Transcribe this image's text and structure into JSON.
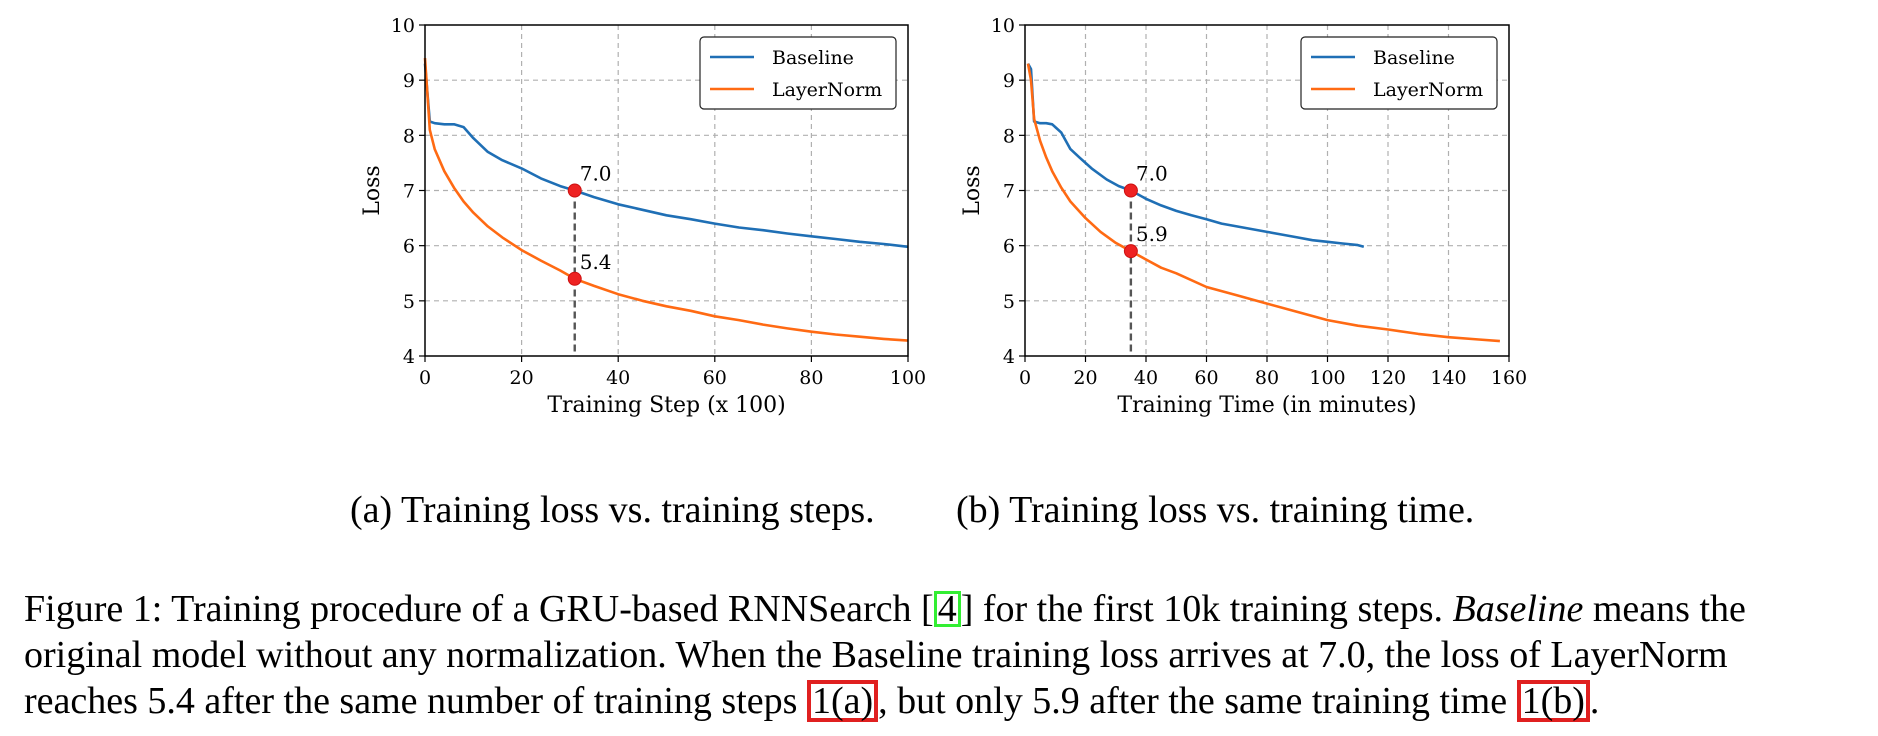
{
  "charts": [
    {
      "id": "a",
      "xlabel": "Training Step (x 100)",
      "ylabel": "Loss",
      "xlim": [
        0,
        100
      ],
      "ylim": [
        4,
        10
      ],
      "xticks": [
        "0",
        "20",
        "40",
        "60",
        "80",
        "100"
      ],
      "yticks": [
        "4",
        "5",
        "6",
        "7",
        "8",
        "9",
        "10"
      ],
      "legend": [
        "Baseline",
        "LayerNorm"
      ],
      "marker_x": 31,
      "markers": [
        {
          "y": 7.0,
          "label": "7.0"
        },
        {
          "y": 5.4,
          "label": "5.4"
        }
      ],
      "subcaption": {
        "tag": "(a)",
        "text": "Training loss vs. training steps."
      }
    },
    {
      "id": "b",
      "xlabel": "Training Time (in minutes)",
      "ylabel": "Loss",
      "xlim": [
        0,
        160
      ],
      "ylim": [
        4,
        10
      ],
      "xticks": [
        "0",
        "20",
        "40",
        "60",
        "80",
        "100",
        "120",
        "140",
        "160"
      ],
      "yticks": [
        "4",
        "5",
        "6",
        "7",
        "8",
        "9",
        "10"
      ],
      "legend": [
        "Baseline",
        "LayerNorm"
      ],
      "marker_x": 35,
      "markers": [
        {
          "y": 7.0,
          "label": "7.0"
        },
        {
          "y": 5.9,
          "label": "5.9"
        }
      ],
      "subcaption": {
        "tag": "(b)",
        "text": "Training loss vs. training time."
      }
    }
  ],
  "chart_data": [
    {
      "type": "line",
      "title": "",
      "xlabel": "Training Step (x 100)",
      "ylabel": "Loss",
      "xlim": [
        0,
        100
      ],
      "ylim": [
        4,
        10
      ],
      "grid": true,
      "legend": "top-right",
      "series": [
        {
          "name": "Baseline",
          "color": "#1f6fb5",
          "x": [
            0,
            1,
            2,
            4,
            6,
            8,
            10,
            13,
            16,
            20,
            24,
            28,
            31,
            35,
            40,
            45,
            50,
            55,
            60,
            65,
            70,
            75,
            80,
            85,
            90,
            95,
            100
          ],
          "y": [
            9.3,
            8.25,
            8.22,
            8.2,
            8.2,
            8.15,
            7.95,
            7.7,
            7.55,
            7.4,
            7.22,
            7.08,
            7.0,
            6.88,
            6.75,
            6.65,
            6.55,
            6.48,
            6.4,
            6.33,
            6.28,
            6.22,
            6.17,
            6.12,
            6.07,
            6.03,
            5.98
          ]
        },
        {
          "name": "LayerNorm",
          "color": "#ff6a13",
          "x": [
            0,
            1,
            2,
            4,
            6,
            8,
            10,
            13,
            16,
            20,
            24,
            28,
            31,
            35,
            40,
            45,
            50,
            55,
            60,
            65,
            70,
            75,
            80,
            85,
            90,
            95,
            100
          ],
          "y": [
            9.4,
            8.1,
            7.75,
            7.35,
            7.05,
            6.8,
            6.6,
            6.35,
            6.15,
            5.92,
            5.73,
            5.55,
            5.4,
            5.27,
            5.12,
            5.0,
            4.9,
            4.82,
            4.72,
            4.65,
            4.57,
            4.5,
            4.44,
            4.39,
            4.35,
            4.31,
            4.28
          ]
        }
      ],
      "annotations": [
        {
          "x": 31,
          "y": 7.0,
          "label": "7.0"
        },
        {
          "x": 31,
          "y": 5.4,
          "label": "5.4"
        }
      ]
    },
    {
      "type": "line",
      "title": "",
      "xlabel": "Training Time (in minutes)",
      "ylabel": "Loss",
      "xlim": [
        0,
        160
      ],
      "ylim": [
        4,
        10
      ],
      "grid": true,
      "legend": "top-right",
      "series": [
        {
          "name": "Baseline",
          "color": "#1f6fb5",
          "x": [
            1,
            2,
            3,
            5,
            7,
            9,
            10,
            12,
            15,
            18,
            22,
            27,
            31,
            35,
            40,
            45,
            50,
            55,
            60,
            65,
            70,
            75,
            80,
            85,
            90,
            95,
            100,
            105,
            110,
            112
          ],
          "y": [
            9.3,
            9.2,
            8.25,
            8.22,
            8.22,
            8.2,
            8.15,
            8.05,
            7.75,
            7.6,
            7.4,
            7.2,
            7.08,
            7.0,
            6.85,
            6.73,
            6.63,
            6.55,
            6.48,
            6.4,
            6.35,
            6.3,
            6.25,
            6.2,
            6.15,
            6.1,
            6.07,
            6.04,
            6.01,
            5.98
          ]
        },
        {
          "name": "LayerNorm",
          "color": "#ff6a13",
          "x": [
            1,
            2,
            3,
            5,
            7,
            9,
            12,
            15,
            20,
            25,
            30,
            35,
            40,
            45,
            50,
            60,
            70,
            80,
            90,
            100,
            110,
            120,
            130,
            140,
            150,
            157
          ],
          "y": [
            9.3,
            9.0,
            8.3,
            7.9,
            7.6,
            7.35,
            7.05,
            6.8,
            6.5,
            6.25,
            6.05,
            5.9,
            5.75,
            5.6,
            5.5,
            5.25,
            5.1,
            4.95,
            4.8,
            4.65,
            4.55,
            4.48,
            4.4,
            4.34,
            4.3,
            4.27
          ]
        }
      ],
      "annotations": [
        {
          "x": 35,
          "y": 7.0,
          "label": "7.0"
        },
        {
          "x": 35,
          "y": 5.9,
          "label": "5.9"
        }
      ]
    }
  ],
  "caption": {
    "line1_a": "Figure 1:  Training procedure of a GRU-based RNNSearch [",
    "cite": "4",
    "line1_b": "] for the first 10k training steps. ",
    "line1_em": "Baseline",
    "line1_c": " means the",
    "line2": "original model without any normalization. When the Baseline training loss arrives at 7.0, the loss of LayerNorm",
    "line3_a": "reaches 5.4 after the same number of training steps ",
    "ref_a": "1(a)",
    "line3_b": ", but only 5.9 after the same training time ",
    "ref_b": "1(b)",
    "line3_c": "."
  },
  "colors": {
    "baseline": "#1f6fb5",
    "layernorm": "#ff6a13",
    "marker": "#ee2222",
    "grid": "#b0b0b0"
  }
}
